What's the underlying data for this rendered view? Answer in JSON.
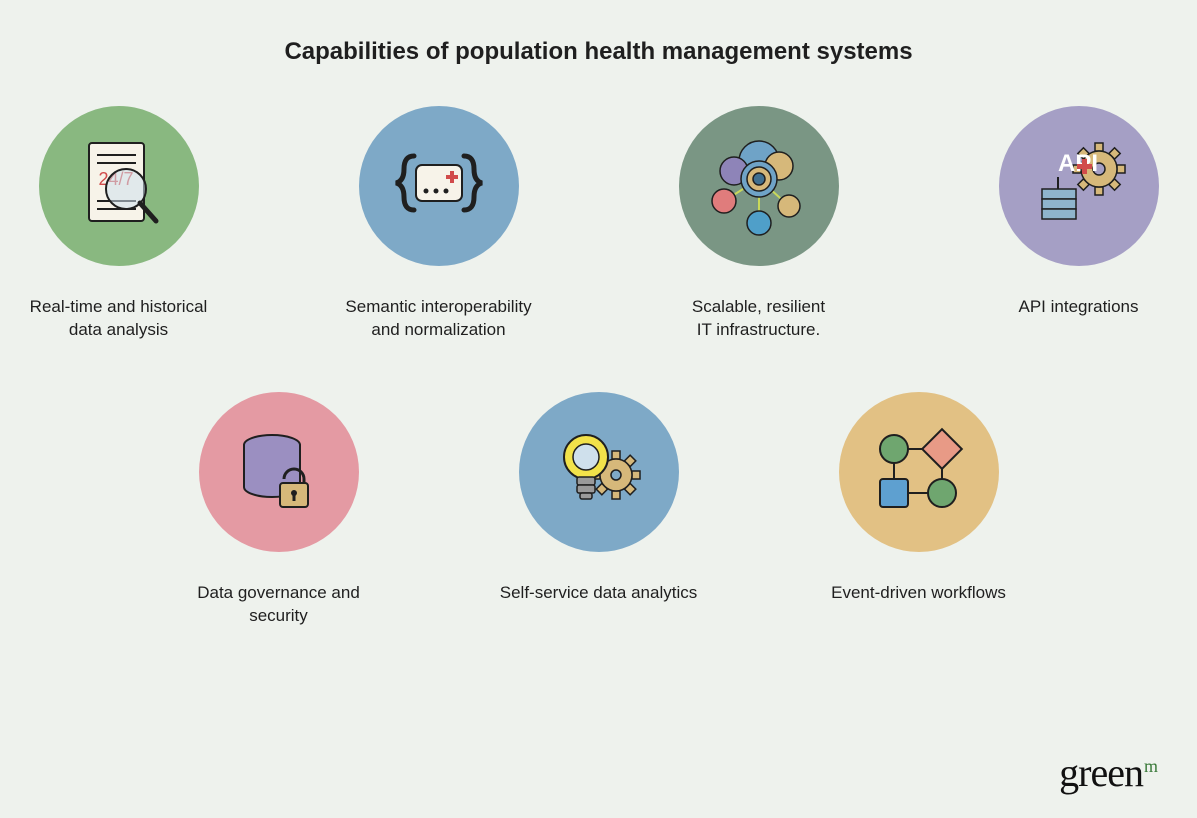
{
  "title": "Capabilities of population health management systems",
  "background_color": "#eef2ed",
  "title_fontsize": 24,
  "title_color": "#1f1f1f",
  "label_fontsize": 17,
  "label_color": "#1f1f1f",
  "bubble_diameter": 160,
  "row1_gap": 120,
  "row2_gap": 120,
  "items": [
    {
      "label": "Real-time and historical\ndata analysis",
      "bubble_color": "#89b880",
      "icon": "doc-magnifier",
      "icon_text": "24/7",
      "icon_text_color": "#d14b4b",
      "doc_fill": "#f7f3e9",
      "doc_stroke": "#1f1f1f",
      "magnifier_fill": "#cfe0ec",
      "magnifier_stroke": "#1f1f1f"
    },
    {
      "label": "Semantic interoperability\nand normalization",
      "bubble_color": "#7ea9c7",
      "icon": "braces-card",
      "card_fill": "#f7f3e9",
      "card_stroke": "#1f1f1f",
      "brace_color": "#1f1f1f",
      "cross_color": "#d14b4b",
      "dot_color": "#1f1f1f"
    },
    {
      "label": "Scalable, resilient\nIT infrastructure.",
      "bubble_color": "#7a9684",
      "icon": "network-circles",
      "core_outer": "#6fa3c7",
      "core_mid": "#d6b87a",
      "core_inner": "#3f6f90",
      "node_colors": [
        "#e07c7c",
        "#4f9fc9",
        "#8e84b8",
        "#d6b87a",
        "#d6b87a"
      ],
      "edge_color": "#c9d85a",
      "stroke": "#1f1f1f"
    },
    {
      "label": "API integrations",
      "bubble_color": "#a59fc5",
      "icon": "api-gear",
      "api_text": "API",
      "api_text_color": "#ffffff",
      "cross_color": "#d14b4b",
      "gear_fill": "#d6b87a",
      "gear_stroke": "#1f1f1f",
      "db_fill": "#8fb4cc",
      "db_stroke": "#1f1f1f"
    },
    {
      "label": "Data governance and security",
      "bubble_color": "#e49aa3",
      "icon": "db-lock",
      "db_fill": "#9b8fc1",
      "db_stroke": "#1f1f1f",
      "lock_fill": "#d6b87a",
      "lock_stroke": "#1f1f1f"
    },
    {
      "label": "Self-service data analytics",
      "bubble_color": "#7ea9c7",
      "icon": "bulb-gear",
      "bulb_fill": "#f2e24a",
      "bulb_glass": "#cfe0ec",
      "bulb_base": "#9a9a9a",
      "gear_fill": "#d6b87a",
      "stroke": "#1f1f1f"
    },
    {
      "label": "Event-driven workflows",
      "bubble_color": "#e2c184",
      "icon": "workflow",
      "circle_fill": "#6fa66f",
      "square_fill": "#5ea0d0",
      "diamond_fill": "#e89a86",
      "edge_color": "#1f1f1f",
      "stroke": "#1f1f1f"
    }
  ],
  "logo": {
    "text": "green",
    "super": "m",
    "text_color": "#111111",
    "super_color": "#3a7a3a"
  }
}
